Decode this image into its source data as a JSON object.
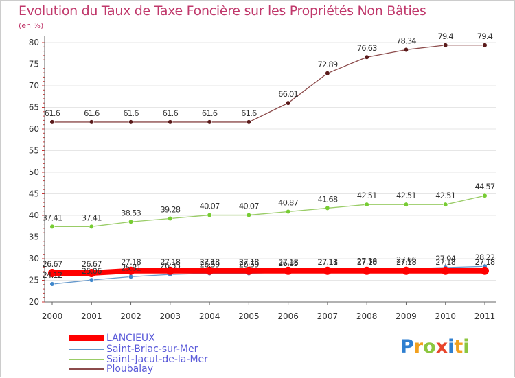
{
  "title": "Evolution du Taux de Taxe Foncière sur les Propriétés Non Bâties",
  "unit_label": "(en %)",
  "colors": {
    "title": "#c0386b",
    "axis": "#666666",
    "grid": "#e6e6e6",
    "legend_text": "#5959d9"
  },
  "chart_data": {
    "type": "line",
    "x": [
      "2000",
      "2001",
      "2002",
      "2003",
      "2004",
      "2005",
      "2006",
      "2007",
      "2008",
      "2009",
      "2010",
      "2011"
    ],
    "ylim": [
      20,
      80
    ],
    "yticks": [
      20,
      25,
      30,
      35,
      40,
      45,
      50,
      55,
      60,
      65,
      70,
      75,
      80
    ],
    "grid": "horizontal",
    "series": [
      {
        "name": "Ploubalay",
        "color": "#8c4b4b",
        "marker_color": "#5a1a1a",
        "values": [
          61.6,
          61.6,
          61.6,
          61.6,
          61.6,
          61.6,
          66.01,
          72.89,
          76.63,
          78.34,
          79.4,
          79.4
        ],
        "labels": [
          "61.6",
          "61.6",
          "61.6",
          "61.6",
          "61.6",
          "61.6",
          "66.01",
          "72.89",
          "76.63",
          "78.34",
          "79.4",
          "79.4"
        ]
      },
      {
        "name": "Saint-Jacut-de-la-Mer",
        "color": "#99cc66",
        "marker_color": "#77cc33",
        "values": [
          37.41,
          37.41,
          38.53,
          39.28,
          40.07,
          40.07,
          40.87,
          41.68,
          42.51,
          42.51,
          42.51,
          44.57
        ],
        "labels": [
          "37.41",
          "37.41",
          "38.53",
          "39.28",
          "40.07",
          "40.07",
          "40.87",
          "41.68",
          "42.51",
          "42.51",
          "42.51",
          "44.57"
        ]
      },
      {
        "name": "Saint-Briac-sur-Mer",
        "color": "#6699cc",
        "marker_color": "#3f87cc",
        "values": [
          24.12,
          25.06,
          25.81,
          26.33,
          26.59,
          26.59,
          26.85,
          27.11,
          27.38,
          27.66,
          27.94,
          28.22
        ],
        "labels": [
          "24.12",
          "25.06",
          "25.81",
          "26.33",
          "26.59",
          "26.59",
          "26.85",
          "27.11",
          "27.38",
          "27.66",
          "27.94",
          "28.22"
        ]
      },
      {
        "name": "LANCIEUX",
        "color": "#ff0000",
        "marker_color": "#ff0000",
        "values": [
          26.67,
          26.67,
          27.18,
          27.18,
          27.18,
          27.18,
          27.18,
          27.18,
          27.18,
          27.18,
          27.18,
          27.18
        ],
        "labels": [
          "26.67",
          "26.67",
          "27.18",
          "27.18",
          "27.18",
          "27.18",
          "27.18",
          "27.18",
          "27.18",
          "27.18",
          "27.18",
          "27.18"
        ]
      }
    ]
  },
  "legend": [
    {
      "label": "LANCIEUX",
      "color": "#ff0000",
      "thick": true
    },
    {
      "label": "Saint-Briac-sur-Mer",
      "color": "#6699cc",
      "thick": false
    },
    {
      "label": "Saint-Jacut-de-la-Mer",
      "color": "#99cc66",
      "thick": false
    },
    {
      "label": "Ploubalay",
      "color": "#8c4b4b",
      "thick": false
    }
  ],
  "logo": {
    "letters": [
      "P",
      "r",
      "o",
      "x",
      "i",
      "t",
      "i"
    ],
    "colors": [
      "#2f7fd0",
      "#f2a01e",
      "#8cc63f",
      "#e8452c",
      "#2f7fd0",
      "#f2a01e",
      "#8cc63f"
    ]
  }
}
